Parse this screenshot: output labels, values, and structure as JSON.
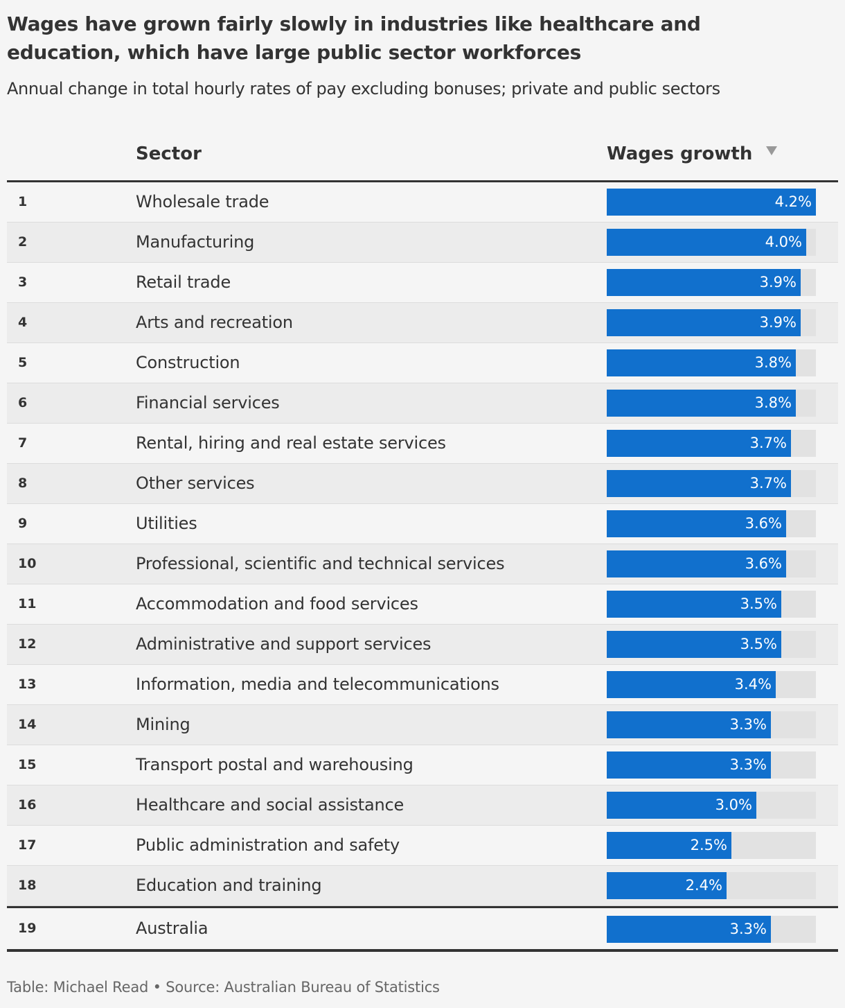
{
  "title": "Wages have grown fairly slowly in industries like healthcare and education, which have large public sector workforces",
  "subtitle": "Annual change in total hourly rates of pay excluding bonuses; private and public sectors",
  "header": {
    "sector_label": "Sector",
    "wages_label": "Wages growth",
    "sort_icon": "sort-descending-triangle-icon"
  },
  "colors": {
    "bar": "#1170cd",
    "track": "#e2e2e2"
  },
  "chart_data": {
    "type": "table",
    "max_value": 4.2,
    "rows": [
      {
        "rank": "1",
        "sector": "Wholesale trade",
        "value": 4.2,
        "label": "4.2%"
      },
      {
        "rank": "2",
        "sector": "Manufacturing",
        "value": 4.0,
        "label": "4.0%"
      },
      {
        "rank": "3",
        "sector": "Retail trade",
        "value": 3.9,
        "label": "3.9%"
      },
      {
        "rank": "4",
        "sector": "Arts and recreation",
        "value": 3.9,
        "label": "3.9%"
      },
      {
        "rank": "5",
        "sector": "Construction",
        "value": 3.8,
        "label": "3.8%"
      },
      {
        "rank": "6",
        "sector": "Financial services",
        "value": 3.8,
        "label": "3.8%"
      },
      {
        "rank": "7",
        "sector": "Rental, hiring and real estate services",
        "value": 3.7,
        "label": "3.7%"
      },
      {
        "rank": "8",
        "sector": "Other services",
        "value": 3.7,
        "label": "3.7%"
      },
      {
        "rank": "9",
        "sector": "Utilities",
        "value": 3.6,
        "label": "3.6%"
      },
      {
        "rank": "10",
        "sector": "Professional, scientific and technical services",
        "value": 3.6,
        "label": "3.6%"
      },
      {
        "rank": "11",
        "sector": "Accommodation and food services",
        "value": 3.5,
        "label": "3.5%"
      },
      {
        "rank": "12",
        "sector": "Administrative and support services",
        "value": 3.5,
        "label": "3.5%"
      },
      {
        "rank": "13",
        "sector": "Information, media and telecommunications",
        "value": 3.4,
        "label": "3.4%"
      },
      {
        "rank": "14",
        "sector": "Mining",
        "value": 3.3,
        "label": "3.3%"
      },
      {
        "rank": "15",
        "sector": "Transport postal and warehousing",
        "value": 3.3,
        "label": "3.3%"
      },
      {
        "rank": "16",
        "sector": "Healthcare and social assistance",
        "value": 3.0,
        "label": "3.0%"
      },
      {
        "rank": "17",
        "sector": "Public administration and safety",
        "value": 2.5,
        "label": "2.5%"
      },
      {
        "rank": "18",
        "sector": "Education and training",
        "value": 2.4,
        "label": "2.4%"
      }
    ],
    "total": {
      "rank": "19",
      "sector": "Australia",
      "value": 3.3,
      "label": "3.3%"
    }
  },
  "footer": "Table: Michael Read • Source: Australian Bureau of Statistics"
}
